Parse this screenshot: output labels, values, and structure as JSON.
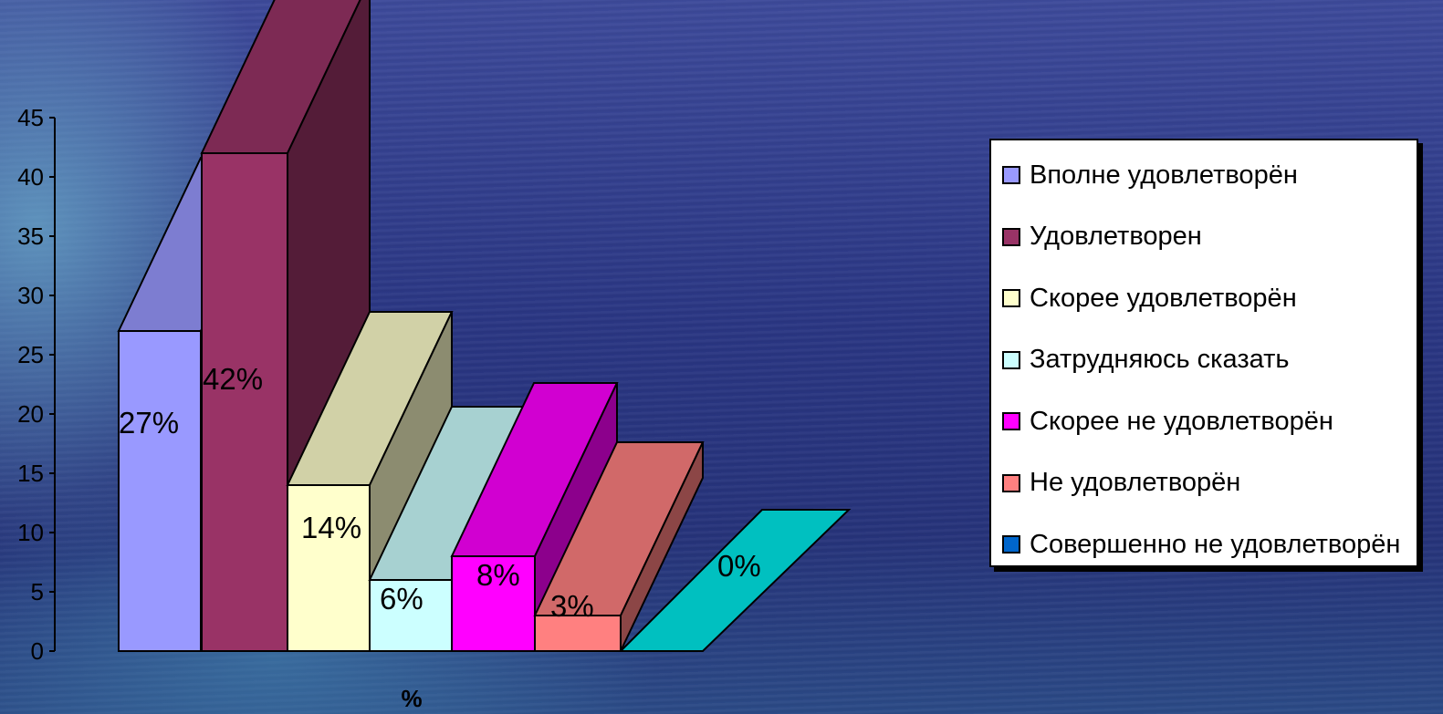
{
  "chart_data": {
    "type": "bar",
    "style": "3d-stepped",
    "xlabel": "%",
    "ylabel": "",
    "ylim": [
      0,
      45
    ],
    "yticks": [
      0,
      5,
      10,
      15,
      20,
      25,
      30,
      35,
      40,
      45
    ],
    "legend_position": "right",
    "series": [
      {
        "name": "Вполне удовлетворён",
        "value": 27,
        "label": "27%",
        "color": "#9999ff"
      },
      {
        "name": "Удовлетворен",
        "value": 42,
        "label": "42%",
        "color": "#993366"
      },
      {
        "name": "Скорее удовлетворён",
        "value": 14,
        "label": "14%",
        "color": "#ffffcc"
      },
      {
        "name": "Затрудняюсь сказать",
        "value": 6,
        "label": "6%",
        "color": "#ccffff"
      },
      {
        "name": "Скорее не удовлетворён",
        "value": 8,
        "label": "8%",
        "color": "#ff00ff"
      },
      {
        "name": "Не удовлетворён",
        "value": 3,
        "label": "3%",
        "color": "#ff8080"
      },
      {
        "name": "Совершенно не удовлетворён",
        "value": 0,
        "label": "0%",
        "color": "#0066cc",
        "floor_color": "#00c0c0"
      }
    ]
  }
}
